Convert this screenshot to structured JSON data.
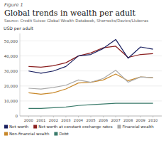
{
  "chart_data": {
    "type": "line",
    "figure_label": "Figure 1",
    "title": "Global trends in wealth per adult",
    "source": "Source: Credit Suisse Global Wealth Databook, Shorrocks/Davies/Lluberas",
    "ylabel": "USD per adult",
    "x": [
      2000,
      2001,
      2002,
      2003,
      2004,
      2005,
      2006,
      2007,
      2008,
      2009,
      2010
    ],
    "xlim": [
      1999.3,
      2010.7
    ],
    "xticks": [
      2000,
      2001,
      2002,
      2003,
      2004,
      2005,
      2006,
      2007,
      2008,
      2009,
      2010
    ],
    "ylim": [
      0,
      55000
    ],
    "yticks": [
      0,
      {
        "value": 10000,
        "label": "10,000"
      },
      {
        "value": 20000,
        "label": "20,000"
      },
      {
        "value": 30000,
        "label": "30,000"
      },
      {
        "value": 40000,
        "label": "40,000"
      },
      {
        "value": 50000,
        "label": "50,000"
      }
    ],
    "grid": true,
    "legend": "bottom",
    "series": [
      {
        "name": "Net worth",
        "color": "#1a2060",
        "values": [
          30000,
          28500,
          30000,
          33000,
          40000,
          41000,
          45000,
          51000,
          38500,
          46000,
          44500
        ]
      },
      {
        "name": "Net worth at constant exchange rates",
        "color": "#8b2020",
        "values": [
          33000,
          32500,
          33500,
          35500,
          40000,
          42000,
          45500,
          46500,
          39000,
          41000,
          41500
        ]
      },
      {
        "name": "Financial wealth",
        "color": "#aaaaaa",
        "values": [
          18500,
          18000,
          19000,
          20500,
          24000,
          22500,
          25000,
          30500,
          22500,
          26000,
          25500
        ]
      },
      {
        "name": "Non-financial wealth",
        "color": "#c8882a",
        "values": [
          15500,
          14500,
          15500,
          18000,
          22000,
          22500,
          24000,
          28000,
          23500,
          26000,
          25500
        ]
      },
      {
        "name": "Debt",
        "color": "#3a7a6a",
        "values": [
          5000,
          5000,
          5500,
          6000,
          7000,
          7500,
          8000,
          8500,
          8500,
          8500,
          8500
        ]
      }
    ]
  }
}
